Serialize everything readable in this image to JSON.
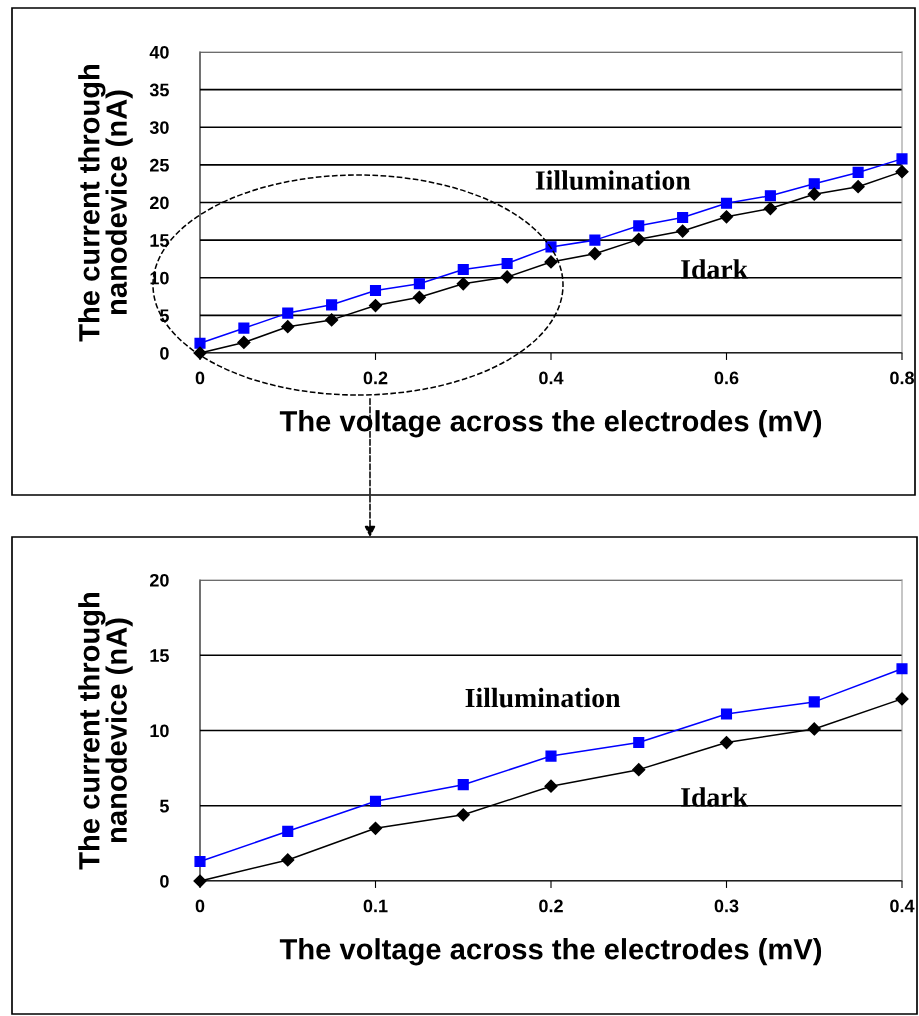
{
  "chart_data": [
    {
      "type": "line",
      "xlabel": "The voltage across the electrodes (mV)",
      "ylabel": "The current through\nnanodevice (nA)",
      "x": [
        0,
        0.05,
        0.1,
        0.15,
        0.2,
        0.25,
        0.3,
        0.35,
        0.4,
        0.45,
        0.5,
        0.55,
        0.6,
        0.65,
        0.7,
        0.75,
        0.8
      ],
      "series": [
        {
          "name": "Iillumination",
          "color": "#0000ff",
          "marker": "square",
          "values": [
            1.3,
            3.3,
            5.3,
            6.4,
            8.3,
            9.2,
            11.1,
            11.9,
            14.1,
            15.0,
            16.9,
            18.0,
            19.9,
            20.9,
            22.5,
            24.0,
            25.8
          ]
        },
        {
          "name": "Idark",
          "color": "#000000",
          "marker": "diamond",
          "values": [
            0,
            1.4,
            3.5,
            4.4,
            6.3,
            7.4,
            9.2,
            10.1,
            12.1,
            13.2,
            15.1,
            16.2,
            18.1,
            19.2,
            21.1,
            22.1,
            24.1
          ]
        }
      ],
      "xlim": [
        0,
        0.8
      ],
      "xticks": [
        0,
        0.2,
        0.4,
        0.6,
        0.8
      ],
      "ylim": [
        0,
        40
      ],
      "yticks": [
        0,
        5,
        10,
        15,
        20,
        25,
        30,
        35,
        40
      ],
      "grid": "y"
    },
    {
      "type": "line",
      "xlabel": "The voltage across the electrodes (mV)",
      "ylabel": "The current through\nnanodevice (nA)",
      "x": [
        0,
        0.05,
        0.1,
        0.15,
        0.2,
        0.25,
        0.3,
        0.35,
        0.4
      ],
      "series": [
        {
          "name": "Iillumination",
          "color": "#0000ff",
          "marker": "square",
          "values": [
            1.3,
            3.3,
            5.3,
            6.4,
            8.3,
            9.2,
            11.1,
            11.9,
            14.1
          ]
        },
        {
          "name": "Idark",
          "color": "#000000",
          "marker": "diamond",
          "values": [
            0,
            1.4,
            3.5,
            4.4,
            6.3,
            7.4,
            9.2,
            10.1,
            12.1
          ]
        }
      ],
      "xlim": [
        0,
        0.4
      ],
      "xticks": [
        0,
        0.1,
        0.2,
        0.3,
        0.4
      ],
      "ylim": [
        0,
        20
      ],
      "yticks": [
        0,
        5,
        10,
        15,
        20
      ],
      "grid": "y"
    }
  ]
}
